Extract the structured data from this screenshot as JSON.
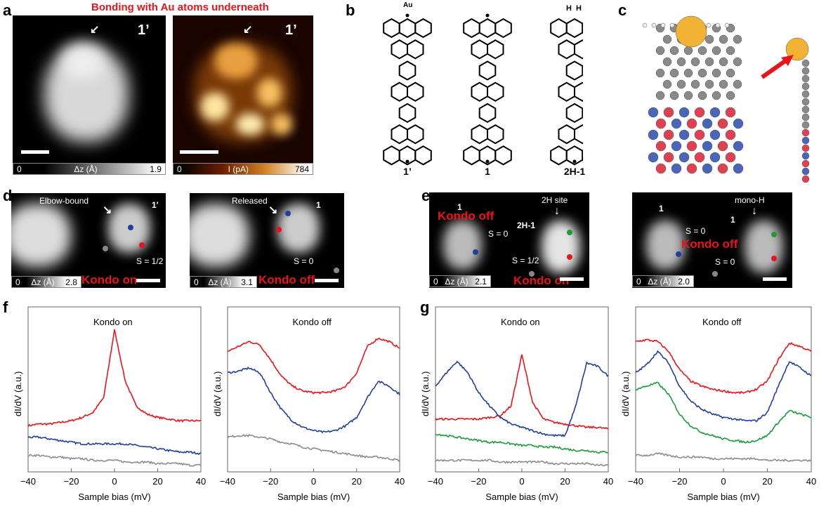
{
  "panel_labels": {
    "a": "a",
    "b": "b",
    "c": "c",
    "d": "d",
    "e": "e",
    "f": "f",
    "g": "g"
  },
  "panel_a": {
    "title": "Bonding with Au atoms underneath",
    "left": {
      "tag": "1’",
      "cbar_min": "0",
      "cbar_label": "Δz (Å)",
      "cbar_max": "1.9"
    },
    "right": {
      "tag": "1’",
      "cbar_min": "0",
      "cbar_label": "I (pA)",
      "cbar_max": "784"
    }
  },
  "panel_b": {
    "au_label": "Au",
    "h_label": "H  H",
    "molecules": [
      "1’",
      "1",
      "2H-1"
    ]
  },
  "panel_d": {
    "left": {
      "annotation": "Elbow-bound",
      "tag": "1′",
      "spin": "S = 1/2",
      "kondo": "Kondo on",
      "cbar_min": "0",
      "cbar_label": "Δz (Å)",
      "cbar_max": "2.8"
    },
    "right": {
      "annotation": "Released",
      "tag": "1",
      "spin": "S = 0",
      "kondo": "Kondo off",
      "cbar_min": "0",
      "cbar_label": "Δz (Å)",
      "cbar_max": "3.1"
    }
  },
  "panel_e": {
    "left": {
      "tag_a": "1",
      "kondo_a": "Kondo off",
      "spin_a": "S = 0",
      "tag_b": "2H-1",
      "annotation": "2H site",
      "spin_b": "S = 1/2",
      "kondo_b": "Kondo on",
      "cbar_min": "0",
      "cbar_label": "Δz (Å)",
      "cbar_max": "2.1"
    },
    "right": {
      "tag_a": "1",
      "spin_a": "S = 0",
      "tag_b": "1",
      "annotation": "mono-H",
      "kondo": "Kondo off",
      "spin_b": "S = 0",
      "cbar_min": "0",
      "cbar_label": "Δz (Å)",
      "cbar_max": "2.0"
    }
  },
  "colors": {
    "red": "#e8141b",
    "blue": "#1f3f9a",
    "green": "#1e9a3c",
    "gray": "#8c8c8c",
    "gold": "#f2b233"
  },
  "chart_data": [
    {
      "type": "line",
      "panel": "f",
      "title": "Kondo on",
      "xlabel": "Sample bias (mV)",
      "ylabel": "dI/dV (a.u.)",
      "xlim": [
        -40,
        40
      ],
      "ylim": [
        0,
        1
      ],
      "xticks": [
        "-40",
        "-20",
        "0",
        "20",
        "40"
      ],
      "x": [
        -40,
        -35,
        -30,
        -25,
        -20,
        -15,
        -10,
        -5,
        0,
        5,
        10,
        15,
        20,
        25,
        30,
        35,
        40
      ],
      "series": [
        {
          "name": "red",
          "color": "#e8141b",
          "values": [
            0.28,
            0.29,
            0.29,
            0.3,
            0.31,
            0.33,
            0.36,
            0.45,
            0.86,
            0.55,
            0.4,
            0.35,
            0.33,
            0.32,
            0.31,
            0.31,
            0.31
          ]
        },
        {
          "name": "blue",
          "color": "#1f3f9a",
          "values": [
            0.21,
            0.21,
            0.2,
            0.19,
            0.18,
            0.17,
            0.17,
            0.17,
            0.17,
            0.17,
            0.16,
            0.15,
            0.14,
            0.13,
            0.12,
            0.12,
            0.11
          ]
        },
        {
          "name": "gray",
          "color": "#8c8c8c",
          "values": [
            0.1,
            0.1,
            0.09,
            0.09,
            0.08,
            0.08,
            0.07,
            0.07,
            0.07,
            0.06,
            0.06,
            0.06,
            0.05,
            0.05,
            0.05,
            0.04,
            0.04
          ]
        }
      ]
    },
    {
      "type": "line",
      "panel": "f",
      "title": "Kondo off",
      "xlabel": "Sample bias (mV)",
      "ylabel": "dI/dV (a.u.)",
      "xlim": [
        -40,
        40
      ],
      "ylim": [
        0,
        1
      ],
      "xticks": [
        "-40",
        "-20",
        "0",
        "20",
        "40"
      ],
      "x": [
        -40,
        -35,
        -30,
        -25,
        -20,
        -15,
        -10,
        -5,
        0,
        5,
        10,
        15,
        20,
        25,
        30,
        35,
        40
      ],
      "series": [
        {
          "name": "red",
          "color": "#e8141b",
          "values": [
            0.73,
            0.76,
            0.79,
            0.77,
            0.68,
            0.58,
            0.52,
            0.49,
            0.48,
            0.48,
            0.49,
            0.52,
            0.6,
            0.76,
            0.81,
            0.79,
            0.75
          ]
        },
        {
          "name": "blue",
          "color": "#1f3f9a",
          "values": [
            0.6,
            0.61,
            0.63,
            0.6,
            0.48,
            0.38,
            0.31,
            0.27,
            0.25,
            0.24,
            0.25,
            0.28,
            0.33,
            0.45,
            0.55,
            0.52,
            0.47
          ]
        },
        {
          "name": "gray",
          "color": "#8c8c8c",
          "values": [
            0.21,
            0.22,
            0.22,
            0.21,
            0.2,
            0.18,
            0.17,
            0.15,
            0.14,
            0.13,
            0.12,
            0.11,
            0.1,
            0.09,
            0.09,
            0.08,
            0.07
          ]
        }
      ]
    },
    {
      "type": "line",
      "panel": "g",
      "title": "Kondo on",
      "xlabel": "Sample bias (mV)",
      "ylabel": "dI/dV (a.u.)",
      "xlim": [
        -40,
        40
      ],
      "ylim": [
        0,
        1
      ],
      "xticks": [
        "-40",
        "-20",
        "0",
        "20",
        "40"
      ],
      "x": [
        -40,
        -35,
        -30,
        -25,
        -20,
        -15,
        -10,
        -5,
        0,
        5,
        10,
        15,
        20,
        25,
        30,
        35,
        40
      ],
      "series": [
        {
          "name": "red",
          "color": "#e8141b",
          "values": [
            0.32,
            0.32,
            0.32,
            0.32,
            0.32,
            0.33,
            0.34,
            0.4,
            0.71,
            0.42,
            0.32,
            0.3,
            0.29,
            0.28,
            0.27,
            0.27,
            0.26
          ]
        },
        {
          "name": "blue",
          "color": "#1f3f9a",
          "values": [
            0.52,
            0.6,
            0.67,
            0.6,
            0.48,
            0.4,
            0.33,
            0.29,
            0.27,
            0.25,
            0.23,
            0.22,
            0.22,
            0.4,
            0.66,
            0.64,
            0.58
          ]
        },
        {
          "name": "green",
          "color": "#1e9a3c",
          "values": [
            0.23,
            0.22,
            0.21,
            0.2,
            0.19,
            0.18,
            0.18,
            0.17,
            0.16,
            0.16,
            0.15,
            0.15,
            0.14,
            0.13,
            0.13,
            0.12,
            0.12
          ]
        },
        {
          "name": "gray",
          "color": "#8c8c8c",
          "values": [
            0.07,
            0.07,
            0.07,
            0.07,
            0.07,
            0.07,
            0.06,
            0.06,
            0.06,
            0.06,
            0.06,
            0.05,
            0.05,
            0.05,
            0.05,
            0.04,
            0.04
          ]
        }
      ]
    },
    {
      "type": "line",
      "panel": "g",
      "title": "Kondo off",
      "xlabel": "Sample bias (mV)",
      "ylabel": "dI/dV (a.u.)",
      "xlim": [
        -40,
        40
      ],
      "ylim": [
        0,
        1
      ],
      "xticks": [
        "-40",
        "-20",
        "0",
        "20",
        "40"
      ],
      "x": [
        -40,
        -35,
        -30,
        -25,
        -20,
        -15,
        -10,
        -5,
        0,
        5,
        10,
        15,
        20,
        25,
        30,
        35,
        40
      ],
      "series": [
        {
          "name": "red",
          "color": "#e8141b",
          "values": [
            0.79,
            0.8,
            0.79,
            0.73,
            0.62,
            0.55,
            0.52,
            0.5,
            0.49,
            0.48,
            0.48,
            0.5,
            0.55,
            0.68,
            0.78,
            0.76,
            0.73
          ]
        },
        {
          "name": "blue",
          "color": "#1f3f9a",
          "values": [
            0.6,
            0.65,
            0.73,
            0.66,
            0.52,
            0.43,
            0.38,
            0.35,
            0.33,
            0.32,
            0.31,
            0.31,
            0.36,
            0.52,
            0.67,
            0.63,
            0.58
          ]
        },
        {
          "name": "green",
          "color": "#1e9a3c",
          "values": [
            0.5,
            0.52,
            0.54,
            0.47,
            0.35,
            0.28,
            0.24,
            0.22,
            0.2,
            0.19,
            0.18,
            0.19,
            0.22,
            0.3,
            0.37,
            0.35,
            0.33
          ]
        },
        {
          "name": "gray",
          "color": "#8c8c8c",
          "values": [
            0.1,
            0.1,
            0.11,
            0.1,
            0.09,
            0.09,
            0.09,
            0.08,
            0.08,
            0.08,
            0.08,
            0.08,
            0.07,
            0.07,
            0.07,
            0.07,
            0.07
          ]
        }
      ]
    }
  ]
}
